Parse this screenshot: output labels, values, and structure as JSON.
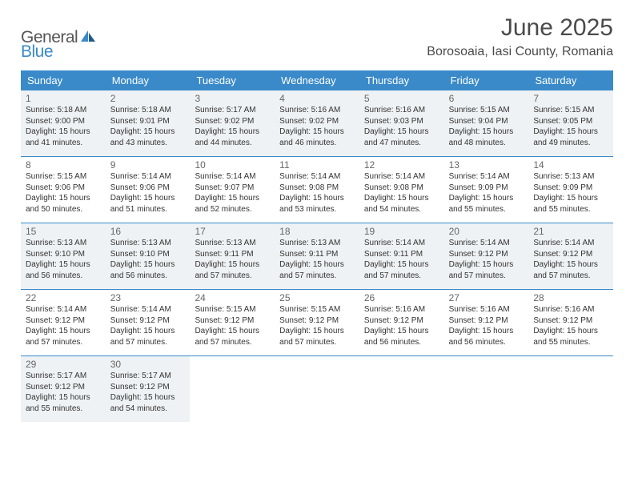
{
  "brand": {
    "word1": "General",
    "word2": "Blue"
  },
  "title": "June 2025",
  "location": "Borosoaia, Iasi County, Romania",
  "colors": {
    "header_bg": "#3a8ac9",
    "header_text": "#ffffff",
    "alt_row_bg": "#eef2f5",
    "divider": "#3a8ac9",
    "text": "#333333"
  },
  "dow": [
    "Sunday",
    "Monday",
    "Tuesday",
    "Wednesday",
    "Thursday",
    "Friday",
    "Saturday"
  ],
  "weeks": [
    [
      {
        "n": "1",
        "sr": "Sunrise: 5:18 AM",
        "ss": "Sunset: 9:00 PM",
        "dl": "Daylight: 15 hours and 41 minutes."
      },
      {
        "n": "2",
        "sr": "Sunrise: 5:18 AM",
        "ss": "Sunset: 9:01 PM",
        "dl": "Daylight: 15 hours and 43 minutes."
      },
      {
        "n": "3",
        "sr": "Sunrise: 5:17 AM",
        "ss": "Sunset: 9:02 PM",
        "dl": "Daylight: 15 hours and 44 minutes."
      },
      {
        "n": "4",
        "sr": "Sunrise: 5:16 AM",
        "ss": "Sunset: 9:02 PM",
        "dl": "Daylight: 15 hours and 46 minutes."
      },
      {
        "n": "5",
        "sr": "Sunrise: 5:16 AM",
        "ss": "Sunset: 9:03 PM",
        "dl": "Daylight: 15 hours and 47 minutes."
      },
      {
        "n": "6",
        "sr": "Sunrise: 5:15 AM",
        "ss": "Sunset: 9:04 PM",
        "dl": "Daylight: 15 hours and 48 minutes."
      },
      {
        "n": "7",
        "sr": "Sunrise: 5:15 AM",
        "ss": "Sunset: 9:05 PM",
        "dl": "Daylight: 15 hours and 49 minutes."
      }
    ],
    [
      {
        "n": "8",
        "sr": "Sunrise: 5:15 AM",
        "ss": "Sunset: 9:06 PM",
        "dl": "Daylight: 15 hours and 50 minutes."
      },
      {
        "n": "9",
        "sr": "Sunrise: 5:14 AM",
        "ss": "Sunset: 9:06 PM",
        "dl": "Daylight: 15 hours and 51 minutes."
      },
      {
        "n": "10",
        "sr": "Sunrise: 5:14 AM",
        "ss": "Sunset: 9:07 PM",
        "dl": "Daylight: 15 hours and 52 minutes."
      },
      {
        "n": "11",
        "sr": "Sunrise: 5:14 AM",
        "ss": "Sunset: 9:08 PM",
        "dl": "Daylight: 15 hours and 53 minutes."
      },
      {
        "n": "12",
        "sr": "Sunrise: 5:14 AM",
        "ss": "Sunset: 9:08 PM",
        "dl": "Daylight: 15 hours and 54 minutes."
      },
      {
        "n": "13",
        "sr": "Sunrise: 5:14 AM",
        "ss": "Sunset: 9:09 PM",
        "dl": "Daylight: 15 hours and 55 minutes."
      },
      {
        "n": "14",
        "sr": "Sunrise: 5:13 AM",
        "ss": "Sunset: 9:09 PM",
        "dl": "Daylight: 15 hours and 55 minutes."
      }
    ],
    [
      {
        "n": "15",
        "sr": "Sunrise: 5:13 AM",
        "ss": "Sunset: 9:10 PM",
        "dl": "Daylight: 15 hours and 56 minutes."
      },
      {
        "n": "16",
        "sr": "Sunrise: 5:13 AM",
        "ss": "Sunset: 9:10 PM",
        "dl": "Daylight: 15 hours and 56 minutes."
      },
      {
        "n": "17",
        "sr": "Sunrise: 5:13 AM",
        "ss": "Sunset: 9:11 PM",
        "dl": "Daylight: 15 hours and 57 minutes."
      },
      {
        "n": "18",
        "sr": "Sunrise: 5:13 AM",
        "ss": "Sunset: 9:11 PM",
        "dl": "Daylight: 15 hours and 57 minutes."
      },
      {
        "n": "19",
        "sr": "Sunrise: 5:14 AM",
        "ss": "Sunset: 9:11 PM",
        "dl": "Daylight: 15 hours and 57 minutes."
      },
      {
        "n": "20",
        "sr": "Sunrise: 5:14 AM",
        "ss": "Sunset: 9:12 PM",
        "dl": "Daylight: 15 hours and 57 minutes."
      },
      {
        "n": "21",
        "sr": "Sunrise: 5:14 AM",
        "ss": "Sunset: 9:12 PM",
        "dl": "Daylight: 15 hours and 57 minutes."
      }
    ],
    [
      {
        "n": "22",
        "sr": "Sunrise: 5:14 AM",
        "ss": "Sunset: 9:12 PM",
        "dl": "Daylight: 15 hours and 57 minutes."
      },
      {
        "n": "23",
        "sr": "Sunrise: 5:14 AM",
        "ss": "Sunset: 9:12 PM",
        "dl": "Daylight: 15 hours and 57 minutes."
      },
      {
        "n": "24",
        "sr": "Sunrise: 5:15 AM",
        "ss": "Sunset: 9:12 PM",
        "dl": "Daylight: 15 hours and 57 minutes."
      },
      {
        "n": "25",
        "sr": "Sunrise: 5:15 AM",
        "ss": "Sunset: 9:12 PM",
        "dl": "Daylight: 15 hours and 57 minutes."
      },
      {
        "n": "26",
        "sr": "Sunrise: 5:16 AM",
        "ss": "Sunset: 9:12 PM",
        "dl": "Daylight: 15 hours and 56 minutes."
      },
      {
        "n": "27",
        "sr": "Sunrise: 5:16 AM",
        "ss": "Sunset: 9:12 PM",
        "dl": "Daylight: 15 hours and 56 minutes."
      },
      {
        "n": "28",
        "sr": "Sunrise: 5:16 AM",
        "ss": "Sunset: 9:12 PM",
        "dl": "Daylight: 15 hours and 55 minutes."
      }
    ],
    [
      {
        "n": "29",
        "sr": "Sunrise: 5:17 AM",
        "ss": "Sunset: 9:12 PM",
        "dl": "Daylight: 15 hours and 55 minutes."
      },
      {
        "n": "30",
        "sr": "Sunrise: 5:17 AM",
        "ss": "Sunset: 9:12 PM",
        "dl": "Daylight: 15 hours and 54 minutes."
      },
      null,
      null,
      null,
      null,
      null
    ]
  ]
}
